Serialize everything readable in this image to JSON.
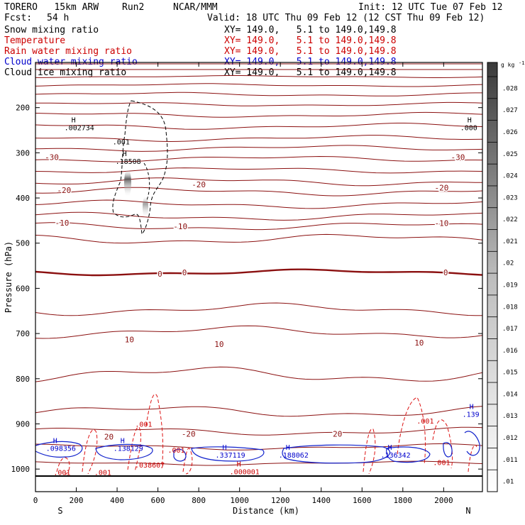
{
  "header": {
    "model": "TORERO   15km ARW",
    "run": "Run2",
    "org": "NCAR/MMM",
    "init": "Init: 12 UTC Tue 07 Feb 12",
    "fcst_label": "Fcst:",
    "fcst_value": "54 h",
    "valid": "Valid: 18 UTC Thu 09 Feb 12 (12 CST Thu 09 Feb 12)"
  },
  "legend": [
    {
      "name": "Snow mixing ratio",
      "color": "#000000",
      "xy": "XY= 149.0,   5.1 to 149.0,149.8",
      "xy_color": "#000000"
    },
    {
      "name": "Temperature",
      "color": "#cc0000",
      "xy": "XY= 149.0,   5.1 to 149.0,149.8",
      "xy_color": "#cc0000"
    },
    {
      "name": "Rain water mixing ratio",
      "color": "#cc0000",
      "xy": "XY= 149.0,   5.1 to 149.0,149.8",
      "xy_color": "#cc0000"
    },
    {
      "name": "Cloud water mixing ratio",
      "color": "#0000cc",
      "xy": "XY= 149.0,   5.1 to 149.0,149.8",
      "xy_color": "#0000cc"
    },
    {
      "name": "Cloud ice mixing ratio",
      "color": "#000000",
      "xy": "XY= 149.0,   5.1 to 149.0,149.8",
      "xy_color": "#000000"
    }
  ],
  "chart_data": {
    "type": "cross-section",
    "xlabel": "Distance (km)",
    "ylabel": "Pressure (hPa)",
    "xlim": [
      0,
      2190
    ],
    "ylim": [
      1050,
      100
    ],
    "x_ticks": [
      "0",
      "200",
      "400",
      "600",
      "800",
      "1000",
      "1200",
      "1400",
      "1600",
      "1800",
      "2000"
    ],
    "y_ticks": [
      "200",
      "300",
      "400",
      "500",
      "600",
      "700",
      "800",
      "900",
      "1000"
    ],
    "x_end_labels": {
      "left": "S",
      "right": "N"
    },
    "colorbar": {
      "units": "g kg",
      "units_sup": "-1",
      "labels": [
        ".01",
        ".011",
        ".012",
        ".013",
        ".014",
        ".015",
        ".016",
        ".017",
        ".018",
        ".019",
        ".02",
        ".021",
        ".022",
        ".023",
        ".024",
        ".025",
        ".026",
        ".027",
        ".028"
      ]
    },
    "temperature_labels": [
      {
        "text": "-30",
        "x": 80,
        "p": 310
      },
      {
        "text": "-30",
        "x": 2070,
        "p": 310
      },
      {
        "text": "-20",
        "x": 140,
        "p": 383
      },
      {
        "text": "-20",
        "x": 800,
        "p": 370
      },
      {
        "text": "-20",
        "x": 1990,
        "p": 377
      },
      {
        "text": "-10",
        "x": 130,
        "p": 455
      },
      {
        "text": "-10",
        "x": 710,
        "p": 463
      },
      {
        "text": "-10",
        "x": 1990,
        "p": 456
      },
      {
        "text": "0",
        "x": 610,
        "p": 568
      },
      {
        "text": "0",
        "x": 730,
        "p": 565
      },
      {
        "text": "0",
        "x": 2010,
        "p": 565
      },
      {
        "text": "10",
        "x": 460,
        "p": 713
      },
      {
        "text": "10",
        "x": 900,
        "p": 723
      },
      {
        "text": "10",
        "x": 1880,
        "p": 720
      },
      {
        "text": "20",
        "x": 360,
        "p": 928
      },
      {
        "text": "-20",
        "x": 750,
        "p": 922
      },
      {
        "text": "20",
        "x": 1480,
        "p": 922
      }
    ],
    "extrema_labels": [
      {
        "mark": "H",
        "value": ".002734",
        "x": 190,
        "p": 245,
        "color": "#000000"
      },
      {
        "mark": "H",
        "value": ".000",
        "x": 2130,
        "p": 245,
        "color": "#000000"
      },
      {
        "mark": "H",
        "value": ".18508",
        "x": 440,
        "p": 320,
        "color": "#000000"
      },
      {
        "mark": "H",
        "value": ".098356",
        "x": 100,
        "p": 955,
        "color": "#0000cc"
      },
      {
        "mark": "H",
        "value": ".138129",
        "x": 430,
        "p": 955,
        "color": "#0000cc"
      },
      {
        "mark": "H",
        "value": ".337119",
        "x": 930,
        "p": 970,
        "color": "#0000cc"
      },
      {
        "mark": "H",
        "value": ".188062",
        "x": 1240,
        "p": 970,
        "color": "#0000cc"
      },
      {
        "mark": "H",
        "value": ".136342",
        "x": 1740,
        "p": 970,
        "color": "#0000cc"
      },
      {
        "mark": "H",
        "value": ".139",
        "x": 2140,
        "p": 880,
        "color": "#0000cc"
      },
      {
        "mark": "H",
        "value": ".000001",
        "x": 1000,
        "p": 1007,
        "color": "#cc0000"
      }
    ],
    "contour_labels": [
      {
        "text": ".001",
        "x": 420,
        "p": 275,
        "color": "#000000"
      },
      {
        "text": ".001",
        "x": 130,
        "p": 1007,
        "color": "#cc0000"
      },
      {
        "text": ".001",
        "x": 330,
        "p": 1007,
        "color": "#cc0000"
      },
      {
        "text": ".001",
        "x": 530,
        "p": 900,
        "color": "#cc0000"
      },
      {
        "text": ".001",
        "x": 690,
        "p": 957,
        "color": "#cc0000"
      },
      {
        "text": ".038607",
        "x": 560,
        "p": 990,
        "color": "#cc0000"
      },
      {
        "text": ".001",
        "x": 1910,
        "p": 893,
        "color": "#cc0000"
      },
      {
        "text": ".001",
        "x": 1990,
        "p": 985,
        "color": "#cc0000"
      }
    ]
  }
}
